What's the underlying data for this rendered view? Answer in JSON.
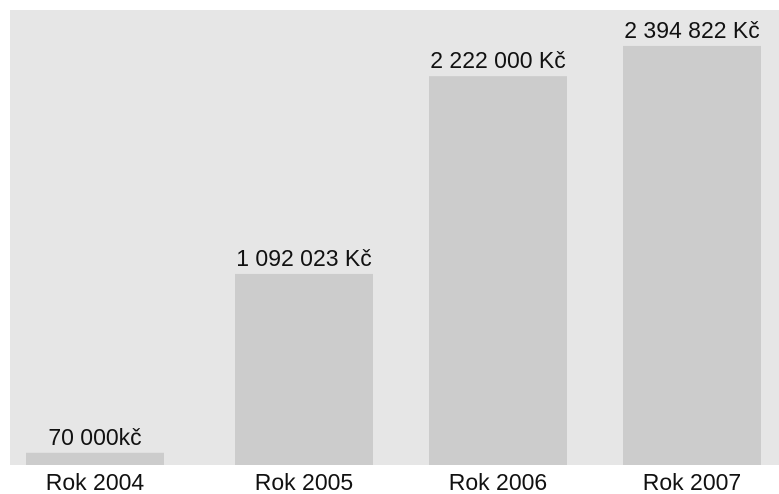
{
  "chart_data": {
    "type": "bar",
    "categories": [
      "Rok 2004",
      "Rok 2005",
      "Rok 2006",
      "Rok 2007"
    ],
    "values": [
      70000,
      1092023,
      2222000,
      2394822
    ],
    "data_labels": [
      "70 000kč",
      "1 092 023 Kč",
      "2 222 000 Kč",
      "2 394 822 Kč"
    ],
    "title": "",
    "xlabel": "",
    "ylabel": "",
    "ylim": [
      0,
      2600000
    ],
    "grid": false,
    "legend": "none"
  },
  "colors": {
    "plot_background": "#e6e6e6",
    "bar": "#cccccc",
    "text": "#111111"
  }
}
